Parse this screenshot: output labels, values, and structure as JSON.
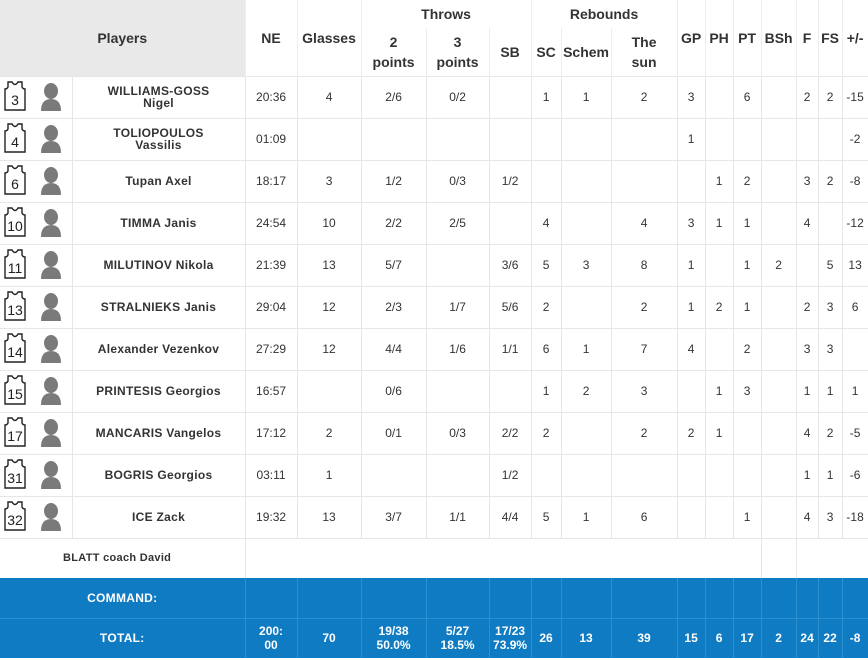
{
  "header": {
    "players": "Players",
    "ne": "NE",
    "glasses": "Glasses",
    "throws": "Throws",
    "two_points": "2\npoints",
    "three_points": "3\npoints",
    "sb": "SB",
    "rebounds": "Rebounds",
    "sc": "SC",
    "schem": "Schem",
    "the_sun": "The\nsun",
    "gp": "GP",
    "ph": "PH",
    "pt": "PT",
    "bsh": "BSh",
    "f": "F",
    "fs": "FS",
    "plus_minus": "+/-"
  },
  "players": [
    {
      "number": "3",
      "name": "WILLIAMS-GOSS\nNigel",
      "ne": "20:36",
      "glasses": "4",
      "two": "2/6",
      "three": "0/2",
      "sb": "",
      "sc": "1",
      "schem": "1",
      "sun": "2",
      "gp": "3",
      "ph": "",
      "pt": "6",
      "bsh": "",
      "f": "2",
      "fs": "2",
      "pm": "-15"
    },
    {
      "number": "4",
      "name": "TOLIOPOULOS\nVassilis",
      "ne": "01:09",
      "glasses": "",
      "two": "",
      "three": "",
      "sb": "",
      "sc": "",
      "schem": "",
      "sun": "",
      "gp": "1",
      "ph": "",
      "pt": "",
      "bsh": "",
      "f": "",
      "fs": "",
      "pm": "-2"
    },
    {
      "number": "6",
      "name": "Tupan Axel",
      "ne": "18:17",
      "glasses": "3",
      "two": "1/2",
      "three": "0/3",
      "sb": "1/2",
      "sc": "",
      "schem": "",
      "sun": "",
      "gp": "",
      "ph": "1",
      "pt": "2",
      "bsh": "",
      "f": "3",
      "fs": "2",
      "pm": "-8"
    },
    {
      "number": "10",
      "name": "TIMMA Janis",
      "ne": "24:54",
      "glasses": "10",
      "two": "2/2",
      "three": "2/5",
      "sb": "",
      "sc": "4",
      "schem": "",
      "sun": "4",
      "gp": "3",
      "ph": "1",
      "pt": "1",
      "bsh": "",
      "f": "4",
      "fs": "",
      "pm": "-12"
    },
    {
      "number": "11",
      "name": "MILUTINOV Nikola",
      "ne": "21:39",
      "glasses": "13",
      "two": "5/7",
      "three": "",
      "sb": "3/6",
      "sc": "5",
      "schem": "3",
      "sun": "8",
      "gp": "1",
      "ph": "",
      "pt": "1",
      "bsh": "2",
      "f": "",
      "fs": "5",
      "pm": "13"
    },
    {
      "number": "13",
      "name": "STRALNIEKS Janis",
      "ne": "29:04",
      "glasses": "12",
      "two": "2/3",
      "three": "1/7",
      "sb": "5/6",
      "sc": "2",
      "schem": "",
      "sun": "2",
      "gp": "1",
      "ph": "2",
      "pt": "1",
      "bsh": "",
      "f": "2",
      "fs": "3",
      "pm": "6"
    },
    {
      "number": "14",
      "name": "Alexander Vezenkov",
      "ne": "27:29",
      "glasses": "12",
      "two": "4/4",
      "three": "1/6",
      "sb": "1/1",
      "sc": "6",
      "schem": "1",
      "sun": "7",
      "gp": "4",
      "ph": "",
      "pt": "2",
      "bsh": "",
      "f": "3",
      "fs": "3",
      "pm": ""
    },
    {
      "number": "15",
      "name": "PRINTESIS Georgios",
      "ne": "16:57",
      "glasses": "",
      "two": "0/6",
      "three": "",
      "sb": "",
      "sc": "1",
      "schem": "2",
      "sun": "3",
      "gp": "",
      "ph": "1",
      "pt": "3",
      "bsh": "",
      "f": "1",
      "fs": "1",
      "pm": "1"
    },
    {
      "number": "17",
      "name": "MANCARIS Vangelos",
      "ne": "17:12",
      "glasses": "2",
      "two": "0/1",
      "three": "0/3",
      "sb": "2/2",
      "sc": "2",
      "schem": "",
      "sun": "2",
      "gp": "2",
      "ph": "1",
      "pt": "",
      "bsh": "",
      "f": "4",
      "fs": "2",
      "pm": "-5"
    },
    {
      "number": "31",
      "name": "BOGRIS Georgios",
      "ne": "03:11",
      "glasses": "1",
      "two": "",
      "three": "",
      "sb": "1/2",
      "sc": "",
      "schem": "",
      "sun": "",
      "gp": "",
      "ph": "",
      "pt": "",
      "bsh": "",
      "f": "1",
      "fs": "1",
      "pm": "-6"
    },
    {
      "number": "32",
      "name": "ICE Zack",
      "ne": "19:32",
      "glasses": "13",
      "two": "3/7",
      "three": "1/1",
      "sb": "4/4",
      "sc": "5",
      "schem": "1",
      "sun": "6",
      "gp": "",
      "ph": "",
      "pt": "1",
      "bsh": "",
      "f": "4",
      "fs": "3",
      "pm": "-18"
    }
  ],
  "coach": {
    "last": "BLATT",
    "role": "coach",
    "first": "David"
  },
  "team": {
    "command_label": "COMMAND:",
    "total_label": "TOTAL:",
    "ne": "200:\n00",
    "glasses": "70",
    "two": "19/38\n50.0%",
    "three": "5/27\n18.5%",
    "sb": "17/23\n73.9%",
    "sc": "26",
    "schem": "13",
    "sun": "39",
    "gp": "15",
    "ph": "6",
    "pt": "17",
    "bsh": "2",
    "f": "24",
    "fs": "22",
    "pm": "-8"
  },
  "colors": {
    "team_bar": "#0f7bc3",
    "header_players_bg": "#e9e9e9"
  },
  "icons": {
    "jersey": "jersey-icon",
    "avatar": "player-avatar-icon"
  }
}
